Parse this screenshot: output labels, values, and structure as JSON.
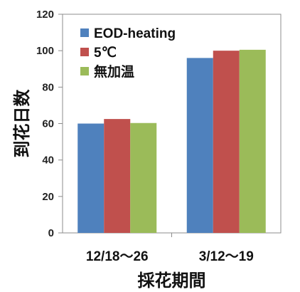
{
  "chart_data": {
    "type": "bar",
    "categories": [
      "12/18～26",
      "3/12～19"
    ],
    "series": [
      {
        "name": "EOD-heating",
        "values": [
          60,
          96
        ],
        "color": "#4f81bd"
      },
      {
        "name": "5℃",
        "values": [
          62.5,
          100
        ],
        "color": "#c0504d"
      },
      {
        "name": "無加温",
        "values": [
          60.3,
          100.5
        ],
        "color": "#9bbb59"
      }
    ],
    "xlabel": "採花期間",
    "ylabel": "到花日数",
    "ylim": [
      0,
      120
    ],
    "yticks": [
      "0",
      "20",
      "40",
      "60",
      "80",
      "100",
      "120"
    ],
    "legend_position": "top-left",
    "grid": false
  }
}
